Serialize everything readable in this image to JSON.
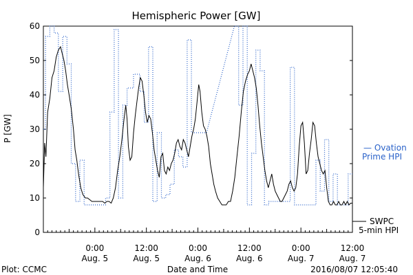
{
  "chart_data": {
    "type": "line",
    "title": "Hemispheric Power [GW]",
    "ylabel": "P [GW]",
    "xlabel": "Date and Time",
    "ylim": [
      0,
      60
    ],
    "y_ticks": [
      0,
      10,
      20,
      30,
      40,
      50,
      60
    ],
    "x_unit": "hours since Aug. 4 12:00",
    "xlim": [
      0,
      72
    ],
    "x_ticks": [
      {
        "x": 12,
        "time": "0:00",
        "date": "Aug. 5"
      },
      {
        "x": 24,
        "time": "12:00",
        "date": "Aug. 5"
      },
      {
        "x": 36,
        "time": "0:00",
        "date": "Aug. 6"
      },
      {
        "x": 48,
        "time": "12:00",
        "date": "Aug. 6"
      },
      {
        "x": 60,
        "time": "0:00",
        "date": "Aug. 7"
      },
      {
        "x": 72,
        "time": "12:00",
        "date": "Aug. 7"
      }
    ],
    "series": [
      {
        "name": "SWPC 5-min HPI",
        "legend_line1": "SWPC",
        "legend_line2": "5-min HPI",
        "color": "#000000",
        "style": "solid",
        "points": [
          [
            0,
            13
          ],
          [
            0.3,
            26
          ],
          [
            0.6,
            22
          ],
          [
            1,
            35
          ],
          [
            1.5,
            39
          ],
          [
            2,
            45
          ],
          [
            2.5,
            47
          ],
          [
            3,
            51
          ],
          [
            3.5,
            53
          ],
          [
            4,
            54
          ],
          [
            4.4,
            52
          ],
          [
            4.8,
            50
          ],
          [
            5.2,
            47
          ],
          [
            5.6,
            43
          ],
          [
            6,
            40
          ],
          [
            6.5,
            36
          ],
          [
            7,
            30
          ],
          [
            7.4,
            24
          ],
          [
            7.8,
            21
          ],
          [
            8.2,
            17
          ],
          [
            8.7,
            13
          ],
          [
            9.2,
            11
          ],
          [
            9.8,
            10
          ],
          [
            10.3,
            10
          ],
          [
            10.8,
            9.5
          ],
          [
            11.3,
            9
          ],
          [
            11.8,
            9
          ],
          [
            12.3,
            9
          ],
          [
            12.8,
            9
          ],
          [
            13.3,
            9
          ],
          [
            13.8,
            9
          ],
          [
            14.3,
            8.5
          ],
          [
            14.8,
            9
          ],
          [
            15.3,
            9
          ],
          [
            15.8,
            8.5
          ],
          [
            16.3,
            10
          ],
          [
            16.8,
            13
          ],
          [
            17.3,
            18
          ],
          [
            17.8,
            22
          ],
          [
            18.3,
            27
          ],
          [
            18.8,
            33
          ],
          [
            19.2,
            37
          ],
          [
            19.5,
            33
          ],
          [
            19.8,
            25
          ],
          [
            20.2,
            21
          ],
          [
            20.6,
            22
          ],
          [
            21,
            29
          ],
          [
            21.4,
            34
          ],
          [
            21.8,
            38
          ],
          [
            22.2,
            42
          ],
          [
            22.6,
            45
          ],
          [
            23,
            44
          ],
          [
            23.4,
            40
          ],
          [
            23.8,
            35
          ],
          [
            24.2,
            32
          ],
          [
            24.6,
            34
          ],
          [
            25,
            33
          ],
          [
            25.4,
            29
          ],
          [
            25.8,
            24
          ],
          [
            26.2,
            21
          ],
          [
            26.6,
            18
          ],
          [
            27,
            16
          ],
          [
            27.4,
            22
          ],
          [
            27.8,
            23
          ],
          [
            28.2,
            18
          ],
          [
            28.6,
            17
          ],
          [
            29,
            19
          ],
          [
            29.4,
            18
          ],
          [
            29.8,
            20
          ],
          [
            30.2,
            21
          ],
          [
            30.6,
            23
          ],
          [
            31,
            26
          ],
          [
            31.4,
            27
          ],
          [
            31.8,
            25
          ],
          [
            32.2,
            24
          ],
          [
            32.6,
            27
          ],
          [
            33,
            26
          ],
          [
            33.4,
            24
          ],
          [
            33.8,
            22
          ],
          [
            34.2,
            25
          ],
          [
            34.6,
            28
          ],
          [
            35,
            30
          ],
          [
            35.4,
            33
          ],
          [
            35.8,
            38
          ],
          [
            36.2,
            43
          ],
          [
            36.5,
            41
          ],
          [
            36.9,
            35
          ],
          [
            37.3,
            31
          ],
          [
            37.7,
            30
          ],
          [
            38.1,
            28
          ],
          [
            38.5,
            25
          ],
          [
            38.9,
            20
          ],
          [
            39.3,
            17
          ],
          [
            39.7,
            14
          ],
          [
            40.1,
            12
          ],
          [
            40.6,
            10
          ],
          [
            41.1,
            9
          ],
          [
            41.6,
            8
          ],
          [
            42.1,
            8
          ],
          [
            42.6,
            8
          ],
          [
            43.1,
            9
          ],
          [
            43.6,
            9
          ],
          [
            44.1,
            12
          ],
          [
            44.6,
            16
          ],
          [
            45.1,
            22
          ],
          [
            45.6,
            28
          ],
          [
            46.1,
            35
          ],
          [
            46.6,
            41
          ],
          [
            47.1,
            44
          ],
          [
            47.6,
            46
          ],
          [
            48,
            47
          ],
          [
            48.4,
            49
          ],
          [
            48.8,
            47
          ],
          [
            49.2,
            45
          ],
          [
            49.6,
            42
          ],
          [
            50,
            37
          ],
          [
            50.4,
            31
          ],
          [
            50.8,
            26
          ],
          [
            51.2,
            22
          ],
          [
            51.6,
            18
          ],
          [
            52,
            15
          ],
          [
            52.4,
            13
          ],
          [
            52.8,
            15
          ],
          [
            53.2,
            17
          ],
          [
            53.6,
            14
          ],
          [
            54,
            12
          ],
          [
            54.4,
            11
          ],
          [
            54.8,
            10
          ],
          [
            55.2,
            9
          ],
          [
            55.6,
            9
          ],
          [
            56,
            10
          ],
          [
            56.4,
            11
          ],
          [
            56.8,
            12
          ],
          [
            57.2,
            14
          ],
          [
            57.6,
            15
          ],
          [
            58,
            13
          ],
          [
            58.4,
            12
          ],
          [
            58.8,
            13
          ],
          [
            59.2,
            17
          ],
          [
            59.6,
            25
          ],
          [
            60,
            31
          ],
          [
            60.4,
            32
          ],
          [
            60.8,
            26
          ],
          [
            61.2,
            17
          ],
          [
            61.6,
            18
          ],
          [
            62,
            23
          ],
          [
            62.4,
            27
          ],
          [
            62.8,
            32
          ],
          [
            63.2,
            31
          ],
          [
            63.6,
            26
          ],
          [
            64,
            22
          ],
          [
            64.4,
            20
          ],
          [
            64.8,
            18
          ],
          [
            65.2,
            17
          ],
          [
            65.6,
            18
          ],
          [
            66,
            13
          ],
          [
            66.4,
            9
          ],
          [
            66.8,
            8
          ],
          [
            67.2,
            8
          ],
          [
            67.6,
            9
          ],
          [
            68,
            8
          ],
          [
            68.4,
            8
          ],
          [
            68.8,
            9
          ],
          [
            69.2,
            8
          ],
          [
            69.6,
            8
          ],
          [
            70,
            9
          ],
          [
            70.4,
            8
          ],
          [
            70.8,
            9
          ],
          [
            71.2,
            8
          ],
          [
            71.6,
            8.5
          ],
          [
            72,
            8.5
          ]
        ]
      },
      {
        "name": "Ovation Prime HPI",
        "legend_line1": "— Ovation",
        "legend_line2": "Prime HPI",
        "color": "#2a62c9",
        "style": "dotted",
        "points": [
          [
            0,
            30
          ],
          [
            0.5,
            30
          ],
          [
            0.5,
            57
          ],
          [
            1.5,
            57
          ],
          [
            1.5,
            60
          ],
          [
            2.5,
            60
          ],
          [
            2.5,
            58
          ],
          [
            3.5,
            58
          ],
          [
            3.5,
            41
          ],
          [
            4.5,
            41
          ],
          [
            4.5,
            57
          ],
          [
            5.5,
            57
          ],
          [
            5.5,
            49
          ],
          [
            6.5,
            49
          ],
          [
            6.5,
            20
          ],
          [
            7.5,
            20
          ],
          [
            7.5,
            9
          ],
          [
            8.5,
            9
          ],
          [
            8.5,
            21
          ],
          [
            9.5,
            21
          ],
          [
            9.5,
            8
          ],
          [
            14.5,
            8
          ],
          [
            14.5,
            10
          ],
          [
            15.5,
            10
          ],
          [
            15.5,
            35
          ],
          [
            16.5,
            35
          ],
          [
            16.5,
            59
          ],
          [
            17.5,
            59
          ],
          [
            17.5,
            10
          ],
          [
            18.5,
            10
          ],
          [
            18.5,
            37
          ],
          [
            19.5,
            37
          ],
          [
            19.5,
            42
          ],
          [
            21,
            42
          ],
          [
            21,
            46
          ],
          [
            22.5,
            46
          ],
          [
            22.5,
            41
          ],
          [
            23.5,
            41
          ],
          [
            23.5,
            32
          ],
          [
            24.5,
            32
          ],
          [
            24.5,
            54
          ],
          [
            25.5,
            54
          ],
          [
            25.5,
            9
          ],
          [
            26.5,
            9
          ],
          [
            26.5,
            29
          ],
          [
            27.5,
            29
          ],
          [
            27.5,
            10
          ],
          [
            28.5,
            10
          ],
          [
            28.5,
            11
          ],
          [
            29.5,
            11
          ],
          [
            29.5,
            14
          ],
          [
            30.5,
            14
          ],
          [
            30.5,
            24
          ],
          [
            31.5,
            24
          ],
          [
            31.5,
            22
          ],
          [
            32.5,
            22
          ],
          [
            32.5,
            19
          ],
          [
            33.5,
            19
          ],
          [
            33.5,
            56
          ],
          [
            34.5,
            56
          ],
          [
            34.5,
            29
          ],
          [
            38,
            29
          ],
          [
            44.5,
            60
          ],
          [
            45.5,
            60
          ],
          [
            45.5,
            37
          ],
          [
            46.5,
            37
          ],
          [
            46.5,
            60
          ],
          [
            47.5,
            60
          ],
          [
            47.5,
            8
          ],
          [
            48.5,
            8
          ],
          [
            48.5,
            23
          ],
          [
            49.5,
            23
          ],
          [
            49.5,
            53
          ],
          [
            50.5,
            53
          ],
          [
            50.5,
            47
          ],
          [
            51.5,
            47
          ],
          [
            51.5,
            8
          ],
          [
            52.5,
            8
          ],
          [
            52.5,
            9
          ],
          [
            57.5,
            9
          ],
          [
            57.5,
            48
          ],
          [
            58.5,
            48
          ],
          [
            58.5,
            8
          ],
          [
            63.5,
            8
          ],
          [
            63.5,
            21
          ],
          [
            64.5,
            21
          ],
          [
            64.5,
            12
          ],
          [
            65.5,
            12
          ],
          [
            65.5,
            27
          ],
          [
            66.5,
            27
          ],
          [
            66.5,
            9
          ],
          [
            67.5,
            9
          ],
          [
            67.5,
            17
          ],
          [
            68.5,
            17
          ],
          [
            68.5,
            8
          ],
          [
            71,
            8
          ],
          [
            71,
            17
          ],
          [
            72,
            17
          ]
        ]
      }
    ],
    "grid": false,
    "legend": "right"
  },
  "footer": {
    "left": "Plot: CCMC",
    "right": "2016/08/07 12:05:40"
  }
}
